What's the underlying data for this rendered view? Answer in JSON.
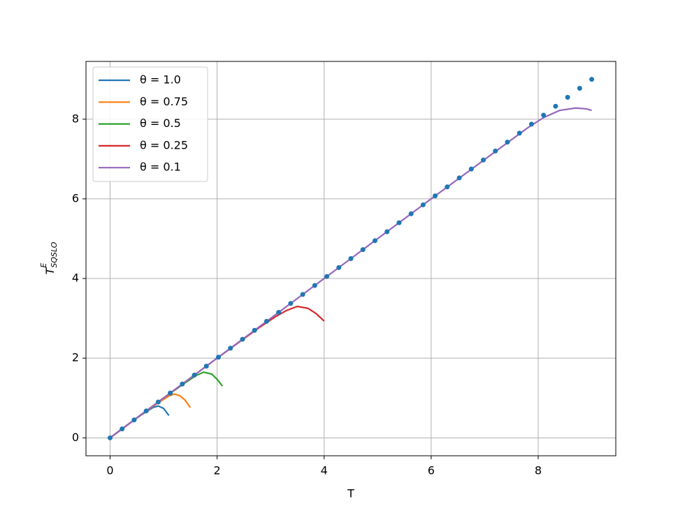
{
  "chart_data": {
    "type": "line",
    "x_label": "T",
    "y_label": {
      "base": "T",
      "sup": "E",
      "sub": "SQSLO"
    },
    "xlim": [
      -0.45,
      9.45
    ],
    "ylim": [
      -0.45,
      9.45
    ],
    "xticks": [
      0,
      2,
      4,
      6,
      8
    ],
    "yticks": [
      0,
      2,
      4,
      6,
      8
    ],
    "grid": true,
    "legend": "upper left",
    "series": [
      {
        "name": "θ = 1.0",
        "color": "#1f77b4",
        "x": [
          0,
          0.2,
          0.4,
          0.6,
          0.8,
          0.9,
          1.0,
          1.1
        ],
        "values": [
          0,
          0.2,
          0.4,
          0.59,
          0.76,
          0.8,
          0.74,
          0.56
        ]
      },
      {
        "name": "θ = 0.75",
        "color": "#ff7f0e",
        "x": [
          0,
          0.3,
          0.6,
          0.9,
          1.1,
          1.2,
          1.3,
          1.4,
          1.5
        ],
        "values": [
          0,
          0.3,
          0.6,
          0.88,
          1.05,
          1.1,
          1.06,
          0.95,
          0.76
        ]
      },
      {
        "name": "θ = 0.5",
        "color": "#2ca02c",
        "x": [
          0,
          0.5,
          1.0,
          1.4,
          1.6,
          1.75,
          1.9,
          2.0,
          2.1
        ],
        "values": [
          0,
          0.5,
          1.0,
          1.38,
          1.56,
          1.65,
          1.6,
          1.47,
          1.3
        ]
      },
      {
        "name": "θ = 0.25",
        "color": "#d62728",
        "x": [
          0,
          1,
          2,
          2.8,
          3.1,
          3.3,
          3.5,
          3.7,
          3.85,
          4.0
        ],
        "values": [
          0,
          1,
          2,
          2.78,
          3.05,
          3.2,
          3.3,
          3.25,
          3.12,
          2.93
        ]
      },
      {
        "name": "θ = 0.1",
        "color": "#9467bd",
        "x": [
          0,
          2,
          4,
          6,
          7.8,
          8.1,
          8.4,
          8.7,
          8.9,
          9.0
        ],
        "values": [
          0,
          2,
          4,
          6,
          7.78,
          8.04,
          8.22,
          8.28,
          8.26,
          8.22
        ]
      }
    ],
    "points": {
      "color": "#1f77b4",
      "x": [
        0,
        0.225,
        0.45,
        0.675,
        0.9,
        1.125,
        1.35,
        1.575,
        1.8,
        2.025,
        2.25,
        2.475,
        2.7,
        2.925,
        3.15,
        3.375,
        3.6,
        3.825,
        4.05,
        4.275,
        4.5,
        4.725,
        4.95,
        5.175,
        5.4,
        5.625,
        5.85,
        6.075,
        6.3,
        6.525,
        6.75,
        6.975,
        7.2,
        7.425,
        7.65,
        7.875,
        8.1,
        8.325,
        8.55,
        8.775,
        9.0
      ],
      "y": [
        0,
        0.225,
        0.45,
        0.675,
        0.9,
        1.125,
        1.35,
        1.575,
        1.8,
        2.025,
        2.25,
        2.475,
        2.7,
        2.925,
        3.15,
        3.375,
        3.6,
        3.825,
        4.05,
        4.275,
        4.5,
        4.725,
        4.95,
        5.175,
        5.4,
        5.625,
        5.85,
        6.075,
        6.3,
        6.525,
        6.75,
        6.975,
        7.2,
        7.425,
        7.65,
        7.875,
        8.1,
        8.325,
        8.55,
        8.775,
        9.0
      ]
    }
  }
}
